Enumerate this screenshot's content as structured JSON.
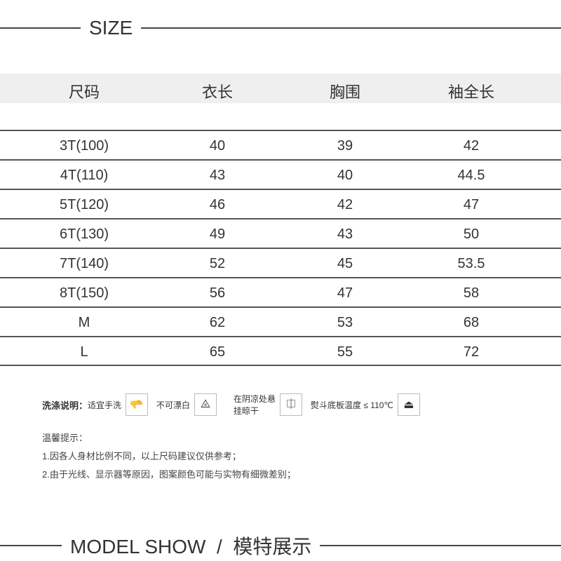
{
  "size_header": "SIZE",
  "table": {
    "headers": [
      "尺码",
      "衣长",
      "胸围",
      "袖全长"
    ],
    "rows": [
      [
        "3T(100)",
        "40",
        "39",
        "42"
      ],
      [
        "4T(110)",
        "43",
        "40",
        "44.5"
      ],
      [
        "5T(120)",
        "46",
        "42",
        "47"
      ],
      [
        "6T(130)",
        "49",
        "43",
        "50"
      ],
      [
        "7T(140)",
        "52",
        "45",
        "53.5"
      ],
      [
        "8T(150)",
        "56",
        "47",
        "58"
      ],
      [
        "M",
        "62",
        "53",
        "68"
      ],
      [
        "L",
        "65",
        "55",
        "72"
      ]
    ]
  },
  "care": {
    "label": "洗涤说明：",
    "items": [
      {
        "text": "适宜手洗",
        "icon": "hand-wash-icon"
      },
      {
        "text": "不可漂白",
        "icon": "no-bleach-icon"
      },
      {
        "text": "在阴凉处悬挂晾干",
        "icon": "line-dry-shade-icon"
      },
      {
        "text": "熨斗底板温度 ≤ 110℃",
        "icon": "iron-icon"
      }
    ]
  },
  "tips": {
    "title": "温馨提示：",
    "lines": [
      "1.因各人身材比例不同，以上尺码建议仅供参考；",
      "2.由于光线、显示器等原因，图案颜色可能与实物有细微差别；"
    ]
  },
  "model_header": "MODEL SHOW  /  模特展示"
}
